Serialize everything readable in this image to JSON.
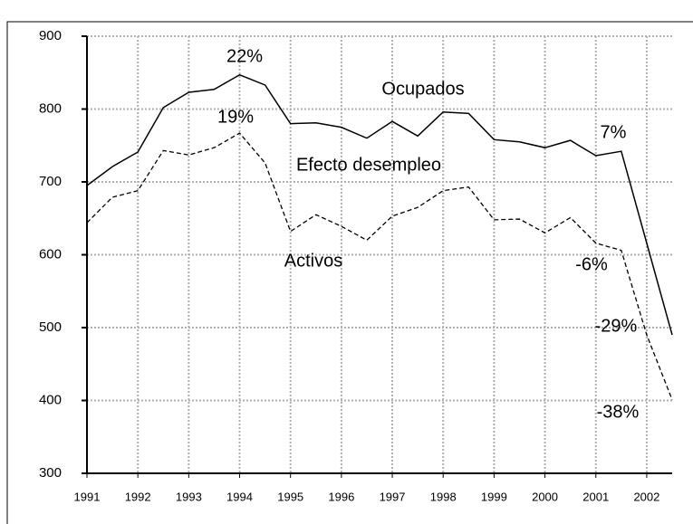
{
  "chart_data": {
    "type": "line",
    "x": [
      1991,
      1991.5,
      1992,
      1992.5,
      1993,
      1993.5,
      1994,
      1994.5,
      1995,
      1995.5,
      1996,
      1996.5,
      1997,
      1997.5,
      1998,
      1998.5,
      1999,
      1999.5,
      2000,
      2000.5,
      2001,
      2001.5,
      2002,
      2002.5
    ],
    "series": [
      {
        "name": "Ocupados",
        "color": "#000000",
        "dash": false,
        "values": [
          695,
          721,
          741,
          802,
          823,
          827,
          847,
          833,
          780,
          781,
          775,
          760,
          783,
          763,
          796,
          794,
          758,
          755,
          747,
          757,
          736,
          742,
          616,
          490
        ]
      },
      {
        "name": "Activos",
        "color": "#000000",
        "dash": true,
        "values": [
          644,
          679,
          688,
          743,
          737,
          747,
          767,
          726,
          632,
          655,
          639,
          620,
          653,
          665,
          688,
          693,
          648,
          649,
          630,
          651,
          616,
          606,
          490,
          401
        ]
      }
    ],
    "annotations": [
      "22%",
      "19%",
      "Efecto desempleo",
      "7%",
      "-6%",
      "-29%",
      "-38%"
    ],
    "xlim": [
      1991,
      2002.5
    ],
    "xticks": [
      1991,
      1992,
      1993,
      1994,
      1995,
      1996,
      1997,
      1998,
      1999,
      2000,
      2001,
      2002
    ],
    "ylim": [
      300,
      900
    ],
    "yticks": [
      300,
      400,
      500,
      600,
      700,
      800,
      900
    ],
    "grid": true
  }
}
